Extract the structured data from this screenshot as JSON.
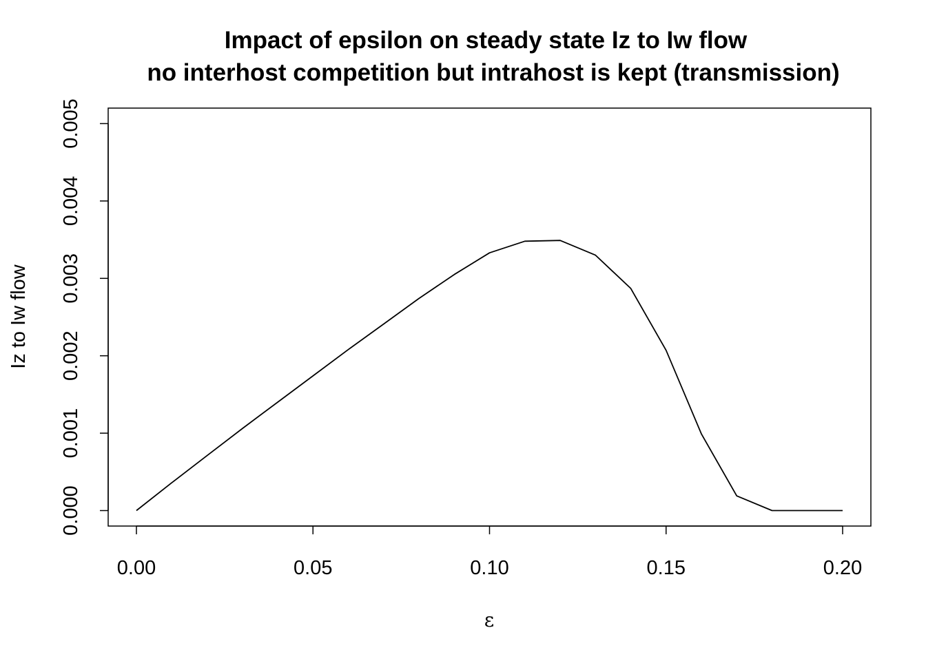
{
  "chart_data": {
    "type": "line",
    "title_line1": "Impact of epsilon on steady state Iz to Iw flow",
    "title_line2": "no interhost competition but intrahost is kept (transmission)",
    "xlabel": "ε",
    "ylabel": "Iz to Iw flow",
    "xlim": [
      -0.008,
      0.208
    ],
    "ylim": [
      -0.0002,
      0.0052
    ],
    "x_ticks": [
      0.0,
      0.05,
      0.1,
      0.15,
      0.2
    ],
    "x_tick_labels": [
      "0.00",
      "0.05",
      "0.10",
      "0.15",
      "0.20"
    ],
    "y_ticks": [
      0.0,
      0.001,
      0.002,
      0.003,
      0.004,
      0.005
    ],
    "y_tick_labels": [
      "0.000",
      "0.001",
      "0.002",
      "0.003",
      "0.004",
      "0.005"
    ],
    "grid": false,
    "series": [
      {
        "color": "#000000",
        "x": [
          0.0,
          0.01,
          0.02,
          0.03,
          0.04,
          0.05,
          0.06,
          0.07,
          0.08,
          0.09,
          0.1,
          0.11,
          0.12,
          0.13,
          0.14,
          0.15,
          0.16,
          0.17,
          0.18,
          0.19,
          0.2
        ],
        "y": [
          0.0,
          0.00036,
          0.00071,
          0.00106,
          0.0014,
          0.00174,
          0.00208,
          0.00241,
          0.00274,
          0.00305,
          0.00333,
          0.00348,
          0.00349,
          0.0033,
          0.00287,
          0.00207,
          0.00099,
          0.00019,
          0.0,
          0.0,
          0.0
        ]
      }
    ]
  }
}
